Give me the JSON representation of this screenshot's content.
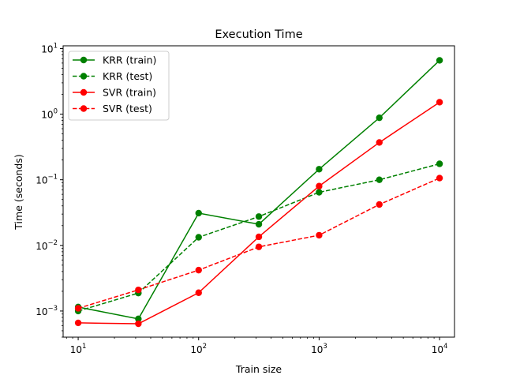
{
  "chart_data": {
    "type": "line",
    "title": "Execution Time",
    "xlabel": "Train size",
    "ylabel": "Time (seconds)",
    "xscale": "log",
    "yscale": "log",
    "xlim": [
      7.5,
      13300
    ],
    "ylim": [
      0.0004,
      11
    ],
    "x": [
      10,
      31.6,
      100,
      316,
      1000,
      3162,
      10000
    ],
    "x_ticks": [
      {
        "value": 10,
        "base": "10",
        "exp": "1"
      },
      {
        "value": 100,
        "base": "10",
        "exp": "2"
      },
      {
        "value": 1000,
        "base": "10",
        "exp": "3"
      },
      {
        "value": 10000,
        "base": "10",
        "exp": "4"
      }
    ],
    "y_ticks": [
      {
        "value": 0.001,
        "base": "10",
        "exp": "−3"
      },
      {
        "value": 0.01,
        "base": "10",
        "exp": "−2"
      },
      {
        "value": 0.1,
        "base": "10",
        "exp": "−1"
      },
      {
        "value": 1,
        "base": "10",
        "exp": "0"
      },
      {
        "value": 10,
        "base": "10",
        "exp": "1"
      }
    ],
    "series": [
      {
        "name": "KRR (train)",
        "color": "#008000",
        "linestyle": "solid",
        "values": [
          0.00115,
          0.00076,
          0.031,
          0.021,
          0.145,
          0.88,
          6.6
        ]
      },
      {
        "name": "KRR (test)",
        "color": "#008000",
        "linestyle": "dashed",
        "values": [
          0.001,
          0.00188,
          0.0133,
          0.0275,
          0.0645,
          0.1,
          0.175
        ]
      },
      {
        "name": "SVR (train)",
        "color": "#ff0000",
        "linestyle": "solid",
        "values": [
          0.00066,
          0.00064,
          0.0019,
          0.0135,
          0.08,
          0.37,
          1.52
        ]
      },
      {
        "name": "SVR (test)",
        "color": "#ff0000",
        "linestyle": "dashed",
        "values": [
          0.0011,
          0.0021,
          0.0042,
          0.0095,
          0.0143,
          0.042,
          0.106
        ]
      }
    ],
    "legend": "top-left",
    "grid": false
  }
}
